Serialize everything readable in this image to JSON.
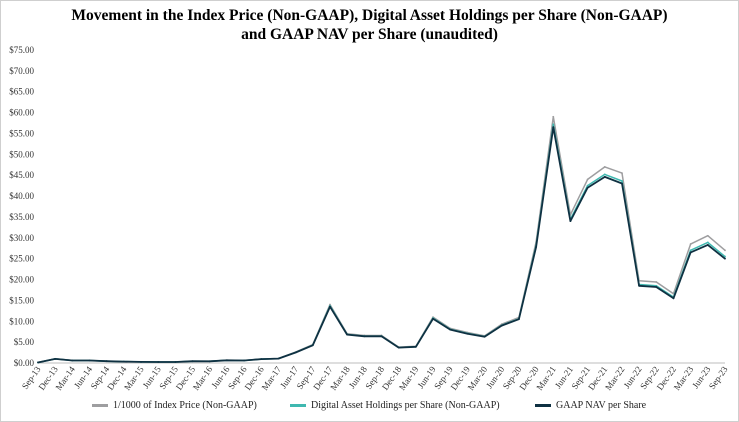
{
  "chart_data": {
    "type": "line",
    "title_line1": "Movement in the Index Price (Non-GAAP), Digital Asset Holdings per Share (Non-GAAP)",
    "title_line2": "and GAAP NAV per Share (unaudited)",
    "xlabel": "",
    "ylabel": "",
    "ylim": [
      0,
      75
    ],
    "y_ticks": [
      "$0.00",
      "$5.00",
      "$10.00",
      "$15.00",
      "$20.00",
      "$25.00",
      "$30.00",
      "$35.00",
      "$40.00",
      "$45.00",
      "$50.00",
      "$55.00",
      "$60.00",
      "$65.00",
      "$70.00",
      "$75.00"
    ],
    "y_tick_values": [
      0,
      5,
      10,
      15,
      20,
      25,
      30,
      35,
      40,
      45,
      50,
      55,
      60,
      65,
      70,
      75
    ],
    "x_ticks": [
      "Sep-13",
      "Dec-13",
      "Mar-14",
      "Jun-14",
      "Sep-14",
      "Dec-14",
      "Mar-15",
      "Jun-15",
      "Sep-15",
      "Dec-15",
      "Mar-16",
      "Jun-16",
      "Sep-16",
      "Dec-16",
      "Mar-17",
      "Jun-17",
      "Sep-17",
      "Dec-17",
      "Mar-18",
      "Jun-18",
      "Sep-18",
      "Dec-18",
      "Mar-19",
      "Jun-19",
      "Sep-19",
      "Dec-19",
      "Mar-20",
      "Jun-20",
      "Sep-20",
      "Dec-20",
      "Mar-21",
      "Jun-21",
      "Sep-21",
      "Dec-21",
      "Mar-22",
      "Jun-22",
      "Sep-22",
      "Dec-22",
      "Mar-23",
      "Jun-23",
      "Sep-23"
    ],
    "grid": false,
    "legend_position": "bottom",
    "series": [
      {
        "name": "1/1000 of Index Price (Non-GAAP)",
        "color": "#9e9ea0",
        "values": [
          0.14,
          1.0,
          0.62,
          0.62,
          0.45,
          0.34,
          0.27,
          0.25,
          0.24,
          0.43,
          0.42,
          0.67,
          0.61,
          0.96,
          1.08,
          2.6,
          4.4,
          14.0,
          7.0,
          6.6,
          6.6,
          3.8,
          4.0,
          11.0,
          8.3,
          7.3,
          6.5,
          9.3,
          10.9,
          29.0,
          59.0,
          35.5,
          44.0,
          47.0,
          45.5,
          19.7,
          19.4,
          16.6,
          28.5,
          30.5,
          27.0
        ]
      },
      {
        "name": "Digital Asset Holdings per Share (Non-GAAP)",
        "color": "#3fb8b0",
        "values": [
          0.13,
          0.99,
          0.61,
          0.61,
          0.44,
          0.33,
          0.26,
          0.24,
          0.23,
          0.42,
          0.41,
          0.66,
          0.6,
          0.94,
          1.06,
          2.55,
          4.3,
          13.7,
          6.85,
          6.45,
          6.45,
          3.72,
          3.9,
          10.75,
          8.1,
          7.1,
          6.35,
          9.05,
          10.6,
          28.2,
          57.2,
          34.4,
          42.5,
          45.2,
          43.6,
          18.8,
          18.5,
          15.8,
          27.0,
          28.9,
          25.5
        ]
      },
      {
        "name": "GAAP NAV per Share",
        "color": "#0f3142",
        "values": [
          0.13,
          0.98,
          0.6,
          0.6,
          0.44,
          0.33,
          0.26,
          0.24,
          0.23,
          0.42,
          0.41,
          0.65,
          0.6,
          0.93,
          1.05,
          2.52,
          4.25,
          13.5,
          6.8,
          6.4,
          6.4,
          3.7,
          3.88,
          10.6,
          8.0,
          7.0,
          6.3,
          8.95,
          10.5,
          27.8,
          56.5,
          34.0,
          42.0,
          44.6,
          43.0,
          18.5,
          18.2,
          15.5,
          26.5,
          28.3,
          25.0
        ]
      }
    ]
  }
}
